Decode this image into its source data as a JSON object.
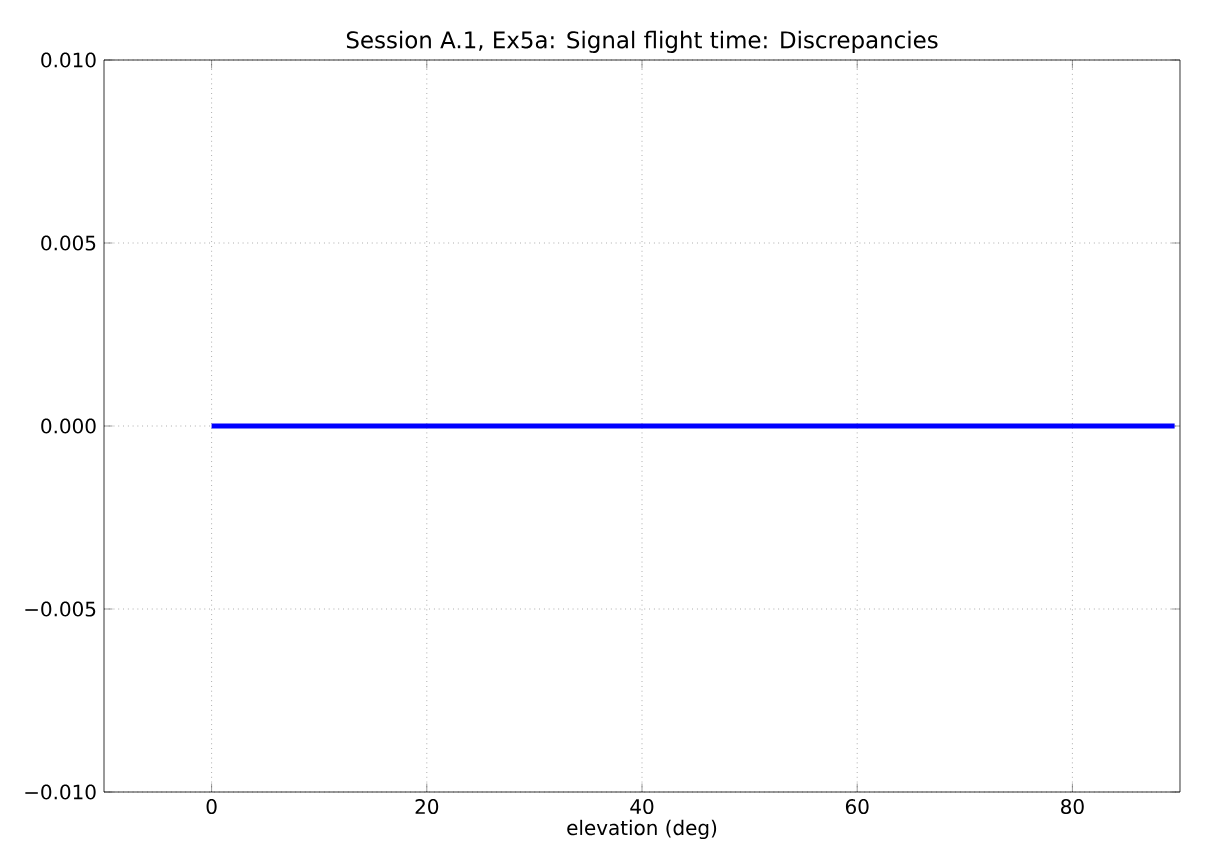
{
  "chart_data": {
    "type": "line",
    "title": "Session A.1, Ex5a: Signal flight time: Discrepancies",
    "xlabel": "elevation (deg)",
    "x": [
      0,
      89.5
    ],
    "series": [
      {
        "color": "#0000ff",
        "values": [
          0,
          0
        ]
      }
    ],
    "xlim": [
      -10,
      90
    ],
    "ylim": [
      -0.01,
      0.01
    ],
    "xticks": [
      0,
      20,
      40,
      60,
      80
    ],
    "yticks": [
      {
        "value": -0.01,
        "label": "−0.010"
      },
      {
        "value": -0.005,
        "label": "−0.005"
      },
      {
        "value": 0,
        "label": "0.000"
      },
      {
        "value": 0.005,
        "label": "0.005"
      },
      {
        "value": 0.01,
        "label": "0.010"
      }
    ],
    "grid": true,
    "marker": "none",
    "line_style": "solid"
  }
}
